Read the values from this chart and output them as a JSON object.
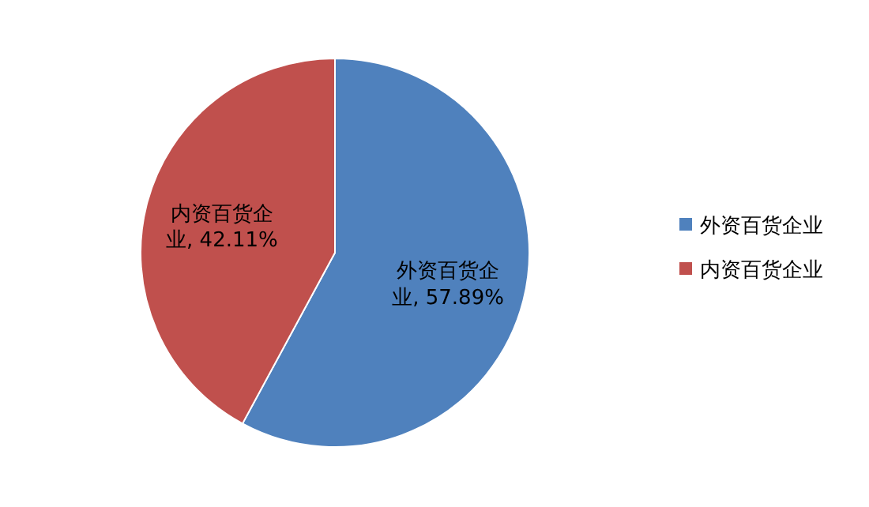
{
  "chart_data": {
    "type": "pie",
    "categories": [
      "外资百货企业",
      "内资百货企业"
    ],
    "values": [
      57.89,
      42.11
    ],
    "colors": [
      "#4f81bd",
      "#c0504d"
    ],
    "value_labels": [
      "外资百货企业, 57.89%",
      "内资百货企业, 42.11%"
    ],
    "legend": "right"
  }
}
